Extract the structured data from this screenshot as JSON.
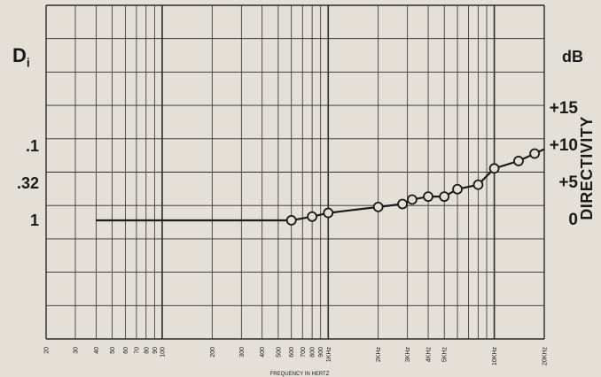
{
  "chart_data": {
    "type": "line",
    "title": "",
    "xlabel": "FREQUENCY IN HERTZ",
    "x_scale": "log",
    "xlim": [
      20,
      20000
    ],
    "x_tick_labels": [
      {
        "value": 20,
        "label": "20"
      },
      {
        "value": 30,
        "label": "30"
      },
      {
        "value": 40,
        "label": "40"
      },
      {
        "value": 50,
        "label": "50"
      },
      {
        "value": 60,
        "label": "60"
      },
      {
        "value": 70,
        "label": "70"
      },
      {
        "value": 80,
        "label": "80"
      },
      {
        "value": 90,
        "label": "90"
      },
      {
        "value": 100,
        "label": "100"
      },
      {
        "value": 200,
        "label": "200"
      },
      {
        "value": 300,
        "label": "300"
      },
      {
        "value": 400,
        "label": "400"
      },
      {
        "value": 500,
        "label": "500"
      },
      {
        "value": 600,
        "label": "600"
      },
      {
        "value": 700,
        "label": "700"
      },
      {
        "value": 800,
        "label": "800"
      },
      {
        "value": 900,
        "label": "900"
      },
      {
        "value": 1000,
        "label": "1KHz"
      },
      {
        "value": 2000,
        "label": "2KHz"
      },
      {
        "value": 3000,
        "label": "3KHz"
      },
      {
        "value": 4000,
        "label": "4KHz"
      },
      {
        "value": 5000,
        "label": "5KHz"
      },
      {
        "value": 10000,
        "label": "10KHz"
      },
      {
        "value": 20000,
        "label": "20KHz"
      }
    ],
    "left_axis_label": "Di",
    "left_axis_label_main": "D",
    "left_axis_label_sub": "i",
    "left_tick_labels": [
      {
        "db": 10,
        "label": ".1"
      },
      {
        "db": 5,
        "label": ".32"
      },
      {
        "db": 0,
        "label": "1"
      }
    ],
    "right_axis_unit": "dB",
    "right_axis_label": "DIRECTIVITY",
    "right_tick_labels": [
      {
        "db": 15,
        "label": "+15"
      },
      {
        "db": 10,
        "label": "+10"
      },
      {
        "db": 5,
        "label": "+5"
      },
      {
        "db": 0,
        "label": "0"
      }
    ],
    "ylim": [
      -16,
      29
    ],
    "grid": true,
    "series": [
      {
        "line_from": 40,
        "x": [
          600,
          800,
          1000,
          2000,
          2800,
          3200,
          4000,
          5000,
          6000,
          8000,
          10000,
          14000,
          17500,
          20000
        ],
        "y": [
          0,
          0.5,
          1,
          1.8,
          2.2,
          2.8,
          3.2,
          3.2,
          4.2,
          4.8,
          7.0,
          8.0,
          9.0,
          9.6
        ],
        "markers": [
          true,
          true,
          true,
          true,
          true,
          true,
          true,
          true,
          true,
          true,
          true,
          true,
          true,
          false
        ]
      }
    ],
    "colors": {
      "background": "#e4e0d8",
      "ink": "#1a1a1a",
      "grid": "#2b2b2b"
    }
  }
}
